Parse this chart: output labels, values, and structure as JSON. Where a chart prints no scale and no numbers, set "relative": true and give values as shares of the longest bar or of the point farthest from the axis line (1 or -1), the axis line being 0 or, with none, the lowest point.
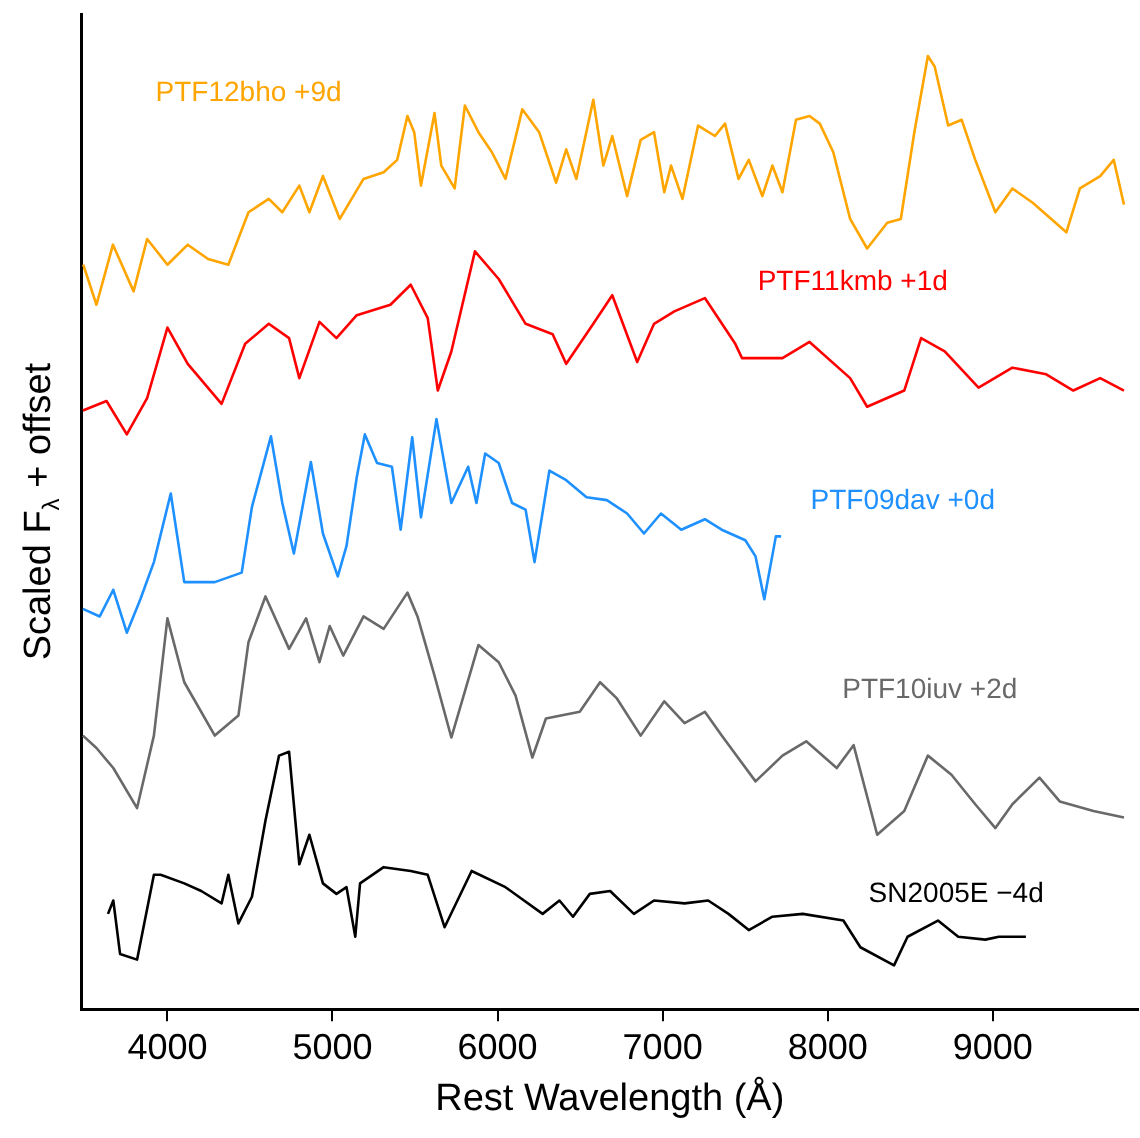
{
  "chart_data": {
    "type": "line",
    "relative": true,
    "xlabel": "Rest Wavelength (Å)",
    "ylabel": "Scaled F$_{λ}$ + offset",
    "xlim": [
      3480,
      9880
    ],
    "xticks": [
      4000,
      5000,
      6000,
      7000,
      8000,
      9000
    ],
    "tick_labels": "x",
    "legend": false,
    "grid": false,
    "marker": "none",
    "line_style": "solid",
    "series": [
      {
        "name": "PTF12bho +9d",
        "color": "#ffa500",
        "x": [
          3490,
          3570,
          3670,
          3795,
          3877,
          4000,
          4123,
          4246,
          4369,
          4491,
          4614,
          4696,
          4799,
          4860,
          4942,
          5044,
          5188,
          5310,
          5392,
          5454,
          5495,
          5536,
          5618,
          5659,
          5740,
          5802,
          5884,
          5966,
          6048,
          6150,
          6252,
          6355,
          6416,
          6477,
          6580,
          6641,
          6695,
          6785,
          6867,
          6948,
          7010,
          7051,
          7120,
          7215,
          7317,
          7378,
          7460,
          7522,
          7604,
          7665,
          7726,
          7808,
          7890,
          7952,
          8034,
          8136,
          8239,
          8361,
          8443,
          8525,
          8607,
          8648,
          8730,
          8812,
          8894,
          9016,
          9119,
          9242,
          9446,
          9528,
          9651,
          9733,
          9795
        ],
        "values": [
          0.781,
          0.739,
          0.802,
          0.753,
          0.808,
          0.781,
          0.802,
          0.787,
          0.781,
          0.836,
          0.85,
          0.836,
          0.864,
          0.836,
          0.874,
          0.829,
          0.871,
          0.878,
          0.891,
          0.937,
          0.92,
          0.864,
          0.94,
          0.885,
          0.861,
          0.948,
          0.92,
          0.899,
          0.871,
          0.944,
          0.92,
          0.867,
          0.902,
          0.871,
          0.954,
          0.885,
          0.916,
          0.853,
          0.912,
          0.92,
          0.857,
          0.885,
          0.85,
          0.927,
          0.916,
          0.929,
          0.871,
          0.891,
          0.853,
          0.885,
          0.857,
          0.933,
          0.937,
          0.929,
          0.899,
          0.829,
          0.798,
          0.825,
          0.829,
          0.92,
          1.0,
          0.989,
          0.927,
          0.933,
          0.891,
          0.836,
          0.861,
          0.846,
          0.815,
          0.861,
          0.874,
          0.891,
          0.844
        ]
      },
      {
        "name": "PTF11kmb +1d",
        "color": "#ff0000",
        "x": [
          3488,
          3631,
          3754,
          3877,
          4000,
          4123,
          4328,
          4471,
          4614,
          4737,
          4799,
          4921,
          5024,
          5147,
          5351,
          5474,
          5577,
          5638,
          5720,
          5863,
          6007,
          6170,
          6334,
          6416,
          6580,
          6695,
          6846,
          6948,
          7071,
          7256,
          7440,
          7481,
          7726,
          7890,
          8136,
          8239,
          8464,
          8566,
          8709,
          8914,
          9119,
          9324,
          9488,
          9651,
          9795
        ],
        "values": [
          0.628,
          0.638,
          0.603,
          0.641,
          0.715,
          0.677,
          0.635,
          0.698,
          0.719,
          0.704,
          0.662,
          0.721,
          0.704,
          0.728,
          0.739,
          0.76,
          0.725,
          0.649,
          0.69,
          0.795,
          0.766,
          0.719,
          0.708,
          0.677,
          0.719,
          0.749,
          0.679,
          0.719,
          0.732,
          0.746,
          0.698,
          0.683,
          0.683,
          0.7,
          0.662,
          0.632,
          0.649,
          0.704,
          0.69,
          0.652,
          0.673,
          0.666,
          0.649,
          0.662,
          0.649
        ]
      },
      {
        "name": "PTF09dav +0d",
        "color": "#1e90ff",
        "x": [
          3488,
          3590,
          3672,
          3754,
          3836,
          3918,
          4020,
          4102,
          4287,
          4450,
          4512,
          4627,
          4696,
          4766,
          4869,
          4942,
          5032,
          5085,
          5147,
          5196,
          5270,
          5360,
          5413,
          5483,
          5536,
          5630,
          5720,
          5822,
          5872,
          5925,
          6007,
          6088,
          6170,
          6224,
          6314,
          6416,
          6539,
          6662,
          6785,
          6887,
          6990,
          7113,
          7256,
          7358,
          7501,
          7563,
          7616,
          7686,
          7718
        ],
        "values": [
          0.42,
          0.412,
          0.44,
          0.395,
          0.43,
          0.469,
          0.541,
          0.448,
          0.448,
          0.458,
          0.527,
          0.601,
          0.531,
          0.478,
          0.574,
          0.499,
          0.454,
          0.486,
          0.558,
          0.603,
          0.573,
          0.569,
          0.503,
          0.6,
          0.516,
          0.619,
          0.531,
          0.569,
          0.531,
          0.583,
          0.573,
          0.531,
          0.524,
          0.469,
          0.565,
          0.555,
          0.537,
          0.534,
          0.52,
          0.499,
          0.52,
          0.503,
          0.514,
          0.503,
          0.492,
          0.475,
          0.43,
          0.496,
          0.496
        ]
      },
      {
        "name": "PTF10iuv +2d",
        "color": "#696969",
        "x": [
          3488,
          3570,
          3672,
          3816,
          3918,
          4000,
          4102,
          4287,
          4430,
          4491,
          4594,
          4737,
          4840,
          4921,
          4983,
          5065,
          5188,
          5310,
          5454,
          5515,
          5618,
          5720,
          5884,
          6007,
          6109,
          6211,
          6293,
          6498,
          6621,
          6723,
          6867,
          7010,
          7133,
          7256,
          7358,
          7563,
          7726,
          7870,
          8055,
          8157,
          8300,
          8464,
          8607,
          8750,
          8894,
          9016,
          9119,
          9283,
          9406,
          9610,
          9795
        ],
        "values": [
          0.287,
          0.274,
          0.253,
          0.211,
          0.287,
          0.41,
          0.343,
          0.287,
          0.308,
          0.385,
          0.433,
          0.378,
          0.41,
          0.364,
          0.402,
          0.371,
          0.412,
          0.399,
          0.437,
          0.412,
          0.35,
          0.285,
          0.382,
          0.364,
          0.329,
          0.264,
          0.305,
          0.312,
          0.343,
          0.326,
          0.287,
          0.323,
          0.3,
          0.312,
          0.287,
          0.239,
          0.266,
          0.281,
          0.253,
          0.277,
          0.183,
          0.208,
          0.266,
          0.246,
          0.215,
          0.19,
          0.215,
          0.243,
          0.218,
          0.208,
          0.201
        ]
      },
      {
        "name": "SN2005E −4d",
        "color": "#000000",
        "x": [
          3640,
          3672,
          3713,
          3816,
          3918,
          3959,
          4102,
          4205,
          4328,
          4369,
          4430,
          4512,
          4594,
          4676,
          4737,
          4799,
          4860,
          4942,
          5024,
          5085,
          5138,
          5167,
          5310,
          5474,
          5577,
          5679,
          5843,
          6048,
          6273,
          6375,
          6457,
          6559,
          6682,
          6826,
          6948,
          7133,
          7276,
          7399,
          7522,
          7665,
          7849,
          8095,
          8198,
          8402,
          8484,
          8668,
          8791,
          8955,
          9037,
          9201
        ],
        "values": [
          0.1,
          0.114,
          0.058,
          0.052,
          0.141,
          0.141,
          0.132,
          0.124,
          0.111,
          0.141,
          0.09,
          0.118,
          0.198,
          0.266,
          0.27,
          0.152,
          0.183,
          0.132,
          0.121,
          0.128,
          0.076,
          0.132,
          0.149,
          0.145,
          0.141,
          0.086,
          0.145,
          0.128,
          0.1,
          0.114,
          0.097,
          0.121,
          0.124,
          0.1,
          0.114,
          0.111,
          0.114,
          0.1,
          0.083,
          0.097,
          0.1,
          0.093,
          0.065,
          0.046,
          0.076,
          0.093,
          0.076,
          0.073,
          0.076,
          0.076
        ]
      }
    ]
  }
}
